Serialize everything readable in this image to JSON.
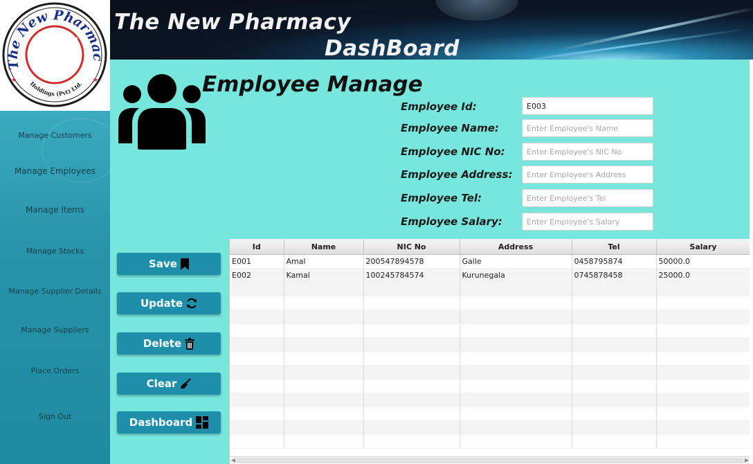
{
  "logo": {
    "arc_text_top": "The New Pharmacy",
    "arc_text_bottom": "Holdings (Pvt) Ltd."
  },
  "header": {
    "title_line1": "The New Pharmacy",
    "title_line2": "DashBoard"
  },
  "sidebar": {
    "items": [
      {
        "label": "Manage Customers",
        "icon": "none"
      },
      {
        "label": "Manage Employees",
        "icon": "none"
      },
      {
        "label": "Manage Items",
        "icon": "none"
      },
      {
        "label": "Manage Stocks",
        "icon": "none"
      },
      {
        "label": "Manage Supplier Details",
        "icon": "none"
      },
      {
        "label": "Manage Suppliers",
        "icon": "none"
      },
      {
        "label": "Place Orders",
        "icon": "none"
      },
      {
        "label": "Sign Out",
        "icon": "none"
      }
    ]
  },
  "page": {
    "title": "Employee Manage",
    "icon": "people-group-icon"
  },
  "form": {
    "id_label": "Employee Id:",
    "id_value": "E003",
    "name_label": "Employee Name:",
    "name_placeholder": "Enter Employee's Name",
    "nic_label": "Employee NIC No:",
    "nic_placeholder": "Enter Employee's NIC No",
    "address_label": "Employee Address:",
    "address_placeholder": "Enter Employee's Address",
    "tel_label": "Employee Tel:",
    "tel_placeholder": "Enter Employee's Tel",
    "salary_label": "Employee Salary:",
    "salary_placeholder": "Enter Employee's Salary"
  },
  "buttons": {
    "save": {
      "label": "Save",
      "icon": "bookmark-icon"
    },
    "update": {
      "label": "Update",
      "icon": "refresh-icon"
    },
    "delete": {
      "label": "Delete",
      "icon": "trash-icon"
    },
    "clear": {
      "label": "Clear",
      "icon": "broom-icon"
    },
    "dashboard": {
      "label": "Dashboard",
      "icon": "dashboard-grid-icon"
    }
  },
  "table": {
    "columns": [
      "Id",
      "Name",
      "NIC No",
      "Address",
      "Tel",
      "Salary"
    ],
    "rows": [
      [
        "E001",
        "Amal",
        "200547894578",
        "Galle",
        "0458795874",
        "50000.0"
      ],
      [
        "E002",
        "Kamal",
        "100245784574",
        "Kurunegala",
        "0745878458",
        "25000.0"
      ]
    ],
    "empty_rows": 12
  },
  "colors": {
    "main_bg": "#77e6dc",
    "sidebar_bg": "#2793aa",
    "button_bg": "#1d8faa",
    "header_bg": "#0b1626",
    "logo_ring": "#d42a2a",
    "logo_text": "#1a2e8a"
  }
}
